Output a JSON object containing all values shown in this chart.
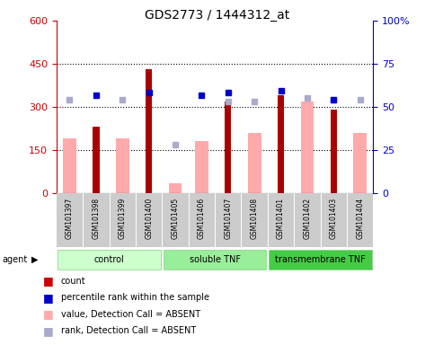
{
  "title": "GDS2773 / 1444312_at",
  "samples": [
    "GSM101397",
    "GSM101398",
    "GSM101399",
    "GSM101400",
    "GSM101405",
    "GSM101406",
    "GSM101407",
    "GSM101408",
    "GSM101401",
    "GSM101402",
    "GSM101403",
    "GSM101404"
  ],
  "groups": [
    {
      "name": "control",
      "start": 0,
      "end": 4,
      "color": "#ccffcc"
    },
    {
      "name": "soluble TNF",
      "start": 4,
      "end": 8,
      "color": "#99ee99"
    },
    {
      "name": "transmembrane TNF",
      "start": 8,
      "end": 12,
      "color": "#44cc44"
    }
  ],
  "count": [
    null,
    230,
    null,
    430,
    null,
    null,
    320,
    null,
    340,
    null,
    290,
    null
  ],
  "percentile_rank": [
    null,
    340,
    null,
    350,
    null,
    340,
    350,
    null,
    355,
    null,
    325,
    null
  ],
  "value_absent": [
    190,
    null,
    190,
    null,
    35,
    180,
    null,
    210,
    null,
    320,
    null,
    210
  ],
  "rank_absent": [
    325,
    null,
    325,
    null,
    170,
    null,
    320,
    320,
    null,
    330,
    325,
    325
  ],
  "ylim_left": [
    0,
    600
  ],
  "ylim_right": [
    0,
    100
  ],
  "yticks_left": [
    0,
    150,
    300,
    450,
    600
  ],
  "yticks_right": [
    0,
    25,
    50,
    75,
    100
  ],
  "ytick_labels_left": [
    "0",
    "150",
    "300",
    "450",
    "600"
  ],
  "ytick_labels_right": [
    "0",
    "25",
    "50",
    "75",
    "100%"
  ],
  "left_axis_color": "#cc0000",
  "right_axis_color": "#0000cc",
  "bar_color_count": "#aa0000",
  "bar_color_absent": "#ffaaaa",
  "dot_color_rank": "#0000cc",
  "dot_color_rank_absent": "#aaaacc",
  "grid_color": "black",
  "agent_label": "agent",
  "legend_items": [
    {
      "color": "#cc0000",
      "label": "count"
    },
    {
      "color": "#0000cc",
      "label": "percentile rank within the sample"
    },
    {
      "color": "#ffaaaa",
      "label": "value, Detection Call = ABSENT"
    },
    {
      "color": "#aaaacc",
      "label": "rank, Detection Call = ABSENT"
    }
  ]
}
